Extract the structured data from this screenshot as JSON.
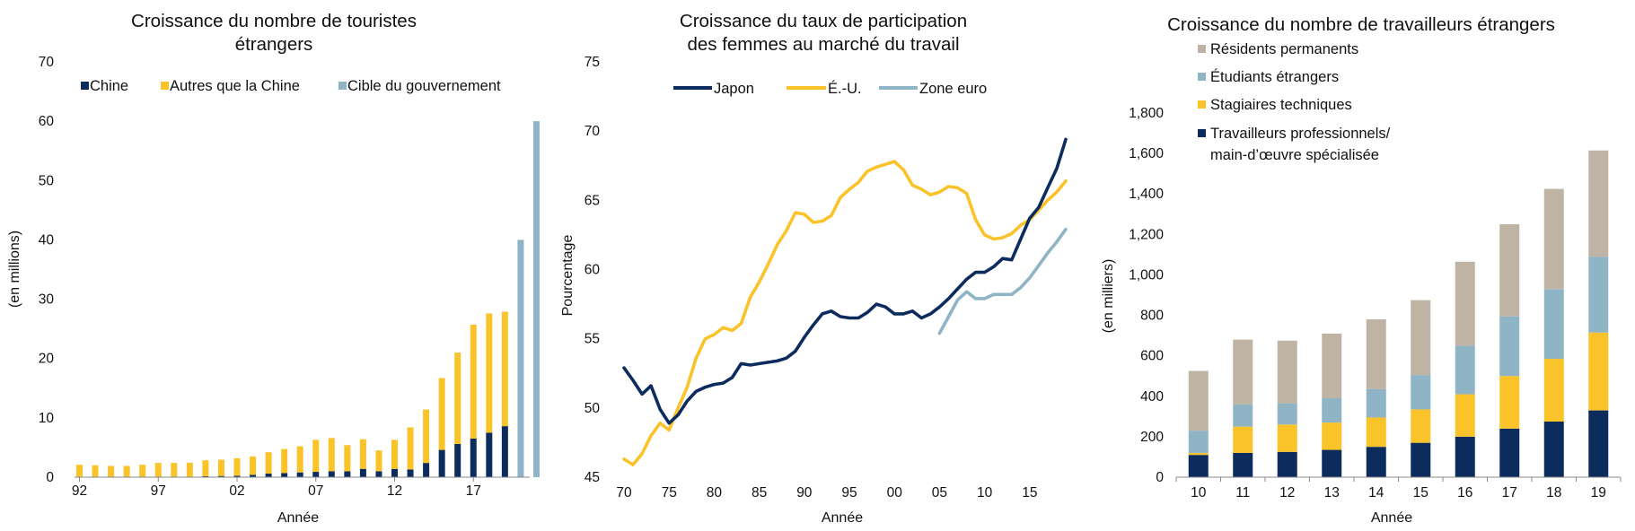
{
  "colors": {
    "china": "#0d2c5e",
    "other": "#f9c329",
    "target": "#8fb4c6",
    "japan": "#0d2c5e",
    "us": "#f9c329",
    "euro": "#8fb4c6",
    "permanent": "#bfb3a3",
    "students": "#8fb4c6",
    "trainees": "#f9c329",
    "professionals": "#0d2c5e"
  },
  "chart_data": [
    {
      "type": "bar",
      "stacked": true,
      "title": [
        "Croissance du nombre de touristes",
        "étrangers"
      ],
      "xlabel": "Année",
      "ylabel": "(en millions)",
      "ylim": [
        0,
        70
      ],
      "yticks": [
        "0",
        "10",
        "20",
        "30",
        "40",
        "50",
        "60",
        "70"
      ],
      "xticks": [
        "92",
        "97",
        "02",
        "07",
        "12",
        "17"
      ],
      "legend": [
        "Chine",
        "Autres que la Chine",
        "Cible du gouvernement"
      ],
      "years": [
        1992,
        1993,
        1994,
        1995,
        1996,
        1997,
        1998,
        1999,
        2000,
        2001,
        2002,
        2003,
        2004,
        2005,
        2006,
        2007,
        2008,
        2009,
        2010,
        2011,
        2012,
        2013,
        2014,
        2015,
        2016,
        2017,
        2018,
        2019,
        2020,
        2030
      ],
      "series": [
        {
          "name": "Chine",
          "values": [
            0.05,
            0.05,
            0.1,
            0.1,
            0.1,
            0.1,
            0.1,
            0.1,
            0.15,
            0.2,
            0.25,
            0.4,
            0.6,
            0.7,
            0.8,
            0.9,
            1.0,
            1.0,
            1.4,
            1.0,
            1.4,
            1.3,
            2.4,
            4.6,
            5.6,
            6.5,
            7.5,
            8.6,
            0,
            0
          ]
        },
        {
          "name": "Autres que la Chine",
          "values": [
            2.05,
            1.95,
            1.8,
            1.8,
            2.0,
            2.3,
            2.3,
            2.35,
            2.7,
            2.75,
            2.95,
            3.1,
            3.6,
            4.05,
            4.4,
            5.4,
            5.6,
            4.4,
            5.0,
            3.5,
            4.9,
            7.1,
            9.0,
            12.1,
            15.4,
            19.2,
            20.1,
            19.3,
            0,
            0
          ]
        },
        {
          "name": "Cible du gouvernement",
          "values": [
            0,
            0,
            0,
            0,
            0,
            0,
            0,
            0,
            0,
            0,
            0,
            0,
            0,
            0,
            0,
            0,
            0,
            0,
            0,
            0,
            0,
            0,
            0,
            0,
            0,
            0,
            0,
            0,
            40,
            60
          ]
        }
      ]
    },
    {
      "type": "line",
      "title": [
        "Croissance du taux de participation",
        "des femmes au marché du travail"
      ],
      "xlabel": "Année",
      "ylabel": "Pourcentage",
      "ylim": [
        45,
        75
      ],
      "xlim": [
        1970,
        2019
      ],
      "yticks": [
        "45",
        "50",
        "55",
        "60",
        "65",
        "70",
        "75"
      ],
      "xticks": [
        "70",
        "75",
        "80",
        "85",
        "90",
        "95",
        "00",
        "05",
        "10",
        "15"
      ],
      "legend": [
        "Japon",
        "É.-U.",
        "Zone euro"
      ],
      "series": [
        {
          "name": "Japon",
          "x": [
            1970,
            1971,
            1972,
            1973,
            1974,
            1975,
            1976,
            1977,
            1978,
            1979,
            1980,
            1981,
            1982,
            1983,
            1984,
            1985,
            1986,
            1987,
            1988,
            1989,
            1990,
            1991,
            1992,
            1993,
            1994,
            1995,
            1996,
            1997,
            1998,
            1999,
            2000,
            2001,
            2002,
            2003,
            2004,
            2005,
            2006,
            2007,
            2008,
            2009,
            2010,
            2011,
            2012,
            2013,
            2014,
            2015,
            2016,
            2017,
            2018,
            2019
          ],
          "values": [
            52.9,
            52.0,
            51.0,
            51.6,
            49.9,
            48.9,
            49.5,
            50.5,
            51.2,
            51.5,
            51.7,
            51.8,
            52.2,
            53.2,
            53.1,
            53.2,
            53.3,
            53.4,
            53.6,
            54.1,
            55.1,
            56.0,
            56.8,
            57.0,
            56.6,
            56.5,
            56.5,
            56.9,
            57.5,
            57.3,
            56.8,
            56.8,
            57.0,
            56.5,
            56.8,
            57.3,
            57.9,
            58.6,
            59.3,
            59.8,
            59.8,
            60.2,
            60.8,
            60.7,
            62.2,
            63.7,
            64.5,
            65.9,
            67.3,
            69.4
          ]
        },
        {
          "name": "É.-U.",
          "x": [
            1970,
            1971,
            1972,
            1973,
            1974,
            1975,
            1976,
            1977,
            1978,
            1979,
            1980,
            1981,
            1982,
            1983,
            1984,
            1985,
            1986,
            1987,
            1988,
            1989,
            1990,
            1991,
            1992,
            1993,
            1994,
            1995,
            1996,
            1997,
            1998,
            1999,
            2000,
            2001,
            2002,
            2003,
            2004,
            2005,
            2006,
            2007,
            2008,
            2009,
            2010,
            2011,
            2012,
            2013,
            2014,
            2015,
            2016,
            2017,
            2018,
            2019
          ],
          "values": [
            46.3,
            45.9,
            46.7,
            48.0,
            48.9,
            48.4,
            50.0,
            51.5,
            53.6,
            55.0,
            55.3,
            55.8,
            55.6,
            56.1,
            58.0,
            59.1,
            60.4,
            61.8,
            62.8,
            64.1,
            64.0,
            63.4,
            63.5,
            63.9,
            65.2,
            65.8,
            66.3,
            67.1,
            67.4,
            67.6,
            67.8,
            67.2,
            66.1,
            65.8,
            65.4,
            65.6,
            66.0,
            65.9,
            65.5,
            63.6,
            62.5,
            62.2,
            62.3,
            62.6,
            63.2,
            63.6,
            64.3,
            65.0,
            65.6,
            66.4
          ]
        },
        {
          "name": "Zone euro",
          "x": [
            2005,
            2006,
            2007,
            2008,
            2009,
            2010,
            2011,
            2012,
            2013,
            2014,
            2015,
            2016,
            2017,
            2018,
            2019
          ],
          "values": [
            55.4,
            56.6,
            57.8,
            58.4,
            57.9,
            57.9,
            58.2,
            58.2,
            58.2,
            58.7,
            59.4,
            60.3,
            61.2,
            62.0,
            62.9
          ]
        }
      ]
    },
    {
      "type": "bar",
      "stacked": true,
      "title": [
        "Croissance du nombre de travailleurs étrangers"
      ],
      "xlabel": "Année",
      "ylabel": "(en milliers)",
      "ylim": [
        0,
        1800
      ],
      "yticks": [
        "0",
        "200",
        "400",
        "600",
        "800",
        "1,000",
        "1,200",
        "1,400",
        "1,600",
        "1,800"
      ],
      "categories": [
        "10",
        "11",
        "12",
        "13",
        "14",
        "15",
        "16",
        "17",
        "18",
        "19"
      ],
      "legend": [
        "Résidents permanents",
        "Étudiants étrangers",
        "Stagiaires techniques",
        "Travailleurs professionnels/|main-d’œuvre spécialisée"
      ],
      "series": [
        {
          "name": "Travailleurs professionnels/main-d’œuvre spécialisée",
          "values": [
            110,
            120,
            125,
            135,
            150,
            170,
            200,
            240,
            275,
            330
          ]
        },
        {
          "name": "Stagiaires techniques",
          "values": [
            10,
            130,
            135,
            135,
            145,
            165,
            210,
            260,
            310,
            385
          ]
        },
        {
          "name": "Étudiants étrangers",
          "values": [
            110,
            110,
            105,
            120,
            140,
            170,
            240,
            295,
            345,
            375
          ]
        },
        {
          "name": "Résidents permanents",
          "values": [
            295,
            320,
            310,
            320,
            345,
            370,
            415,
            455,
            495,
            525
          ]
        }
      ]
    }
  ]
}
